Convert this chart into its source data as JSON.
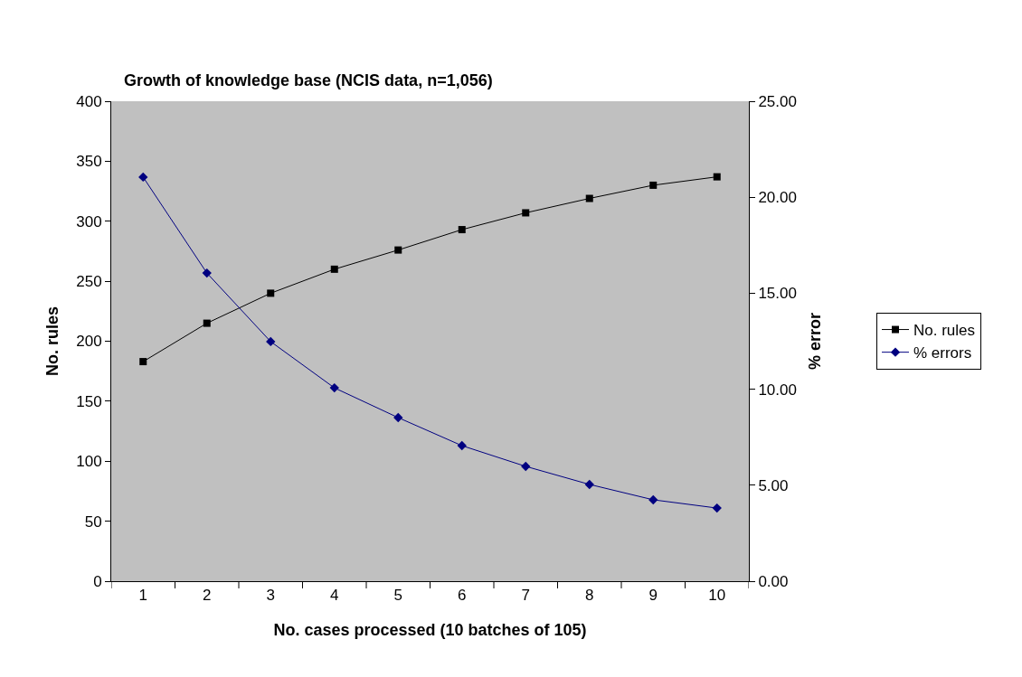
{
  "chart_data": {
    "type": "line",
    "title": "Growth of knowledge base (NCIS data, n=1,056)",
    "xlabel": "No. cases processed (10 batches of 105)",
    "ylabel": "No. rules",
    "y2label": "% error",
    "categories": [
      "1",
      "2",
      "3",
      "4",
      "5",
      "6",
      "7",
      "8",
      "9",
      "10"
    ],
    "series": [
      {
        "name": "No. rules",
        "color": "#000000",
        "marker": "square",
        "values": [
          183,
          215,
          240,
          260,
          276,
          293,
          307,
          319,
          330,
          337
        ]
      },
      {
        "name": "% errors",
        "color": "#000080",
        "marker": "diamond",
        "axis": "y2",
        "values": [
          21.05,
          16.05,
          12.48,
          10.07,
          8.52,
          7.06,
          5.98,
          5.04,
          4.24,
          3.81
        ]
      }
    ],
    "ylim": [
      0,
      400
    ],
    "yticks": [
      0,
      50,
      100,
      150,
      200,
      250,
      300,
      350,
      400
    ],
    "y2lim": [
      0,
      25
    ],
    "y2ticks": [
      {
        "value": 0,
        "label": "0.00"
      },
      {
        "value": 5,
        "label": "5.00"
      },
      {
        "value": 10,
        "label": "10.00"
      },
      {
        "value": 15,
        "label": "15.00"
      },
      {
        "value": 20,
        "label": "20.00"
      },
      {
        "value": 25,
        "label": "25.00"
      }
    ],
    "grid": false,
    "legend": "right",
    "line_style": "solid"
  }
}
